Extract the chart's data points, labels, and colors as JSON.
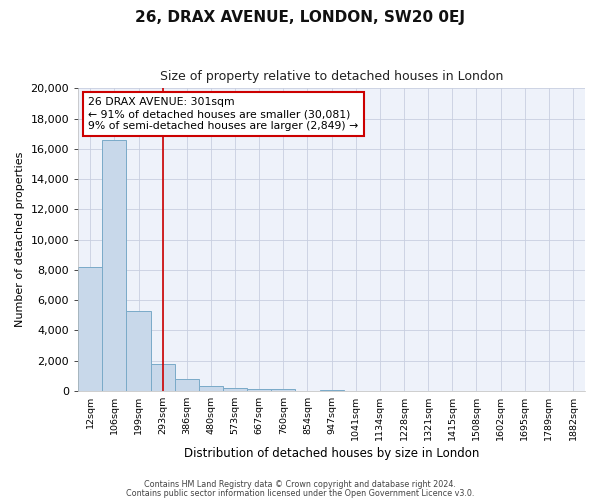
{
  "title": "26, DRAX AVENUE, LONDON, SW20 0EJ",
  "subtitle": "Size of property relative to detached houses in London",
  "xlabel": "Distribution of detached houses by size in London",
  "ylabel": "Number of detached properties",
  "bar_color": "#c8d8ea",
  "bar_edge_color": "#7aaac8",
  "bin_labels": [
    "12sqm",
    "106sqm",
    "199sqm",
    "293sqm",
    "386sqm",
    "480sqm",
    "573sqm",
    "667sqm",
    "760sqm",
    "854sqm",
    "947sqm",
    "1041sqm",
    "1134sqm",
    "1228sqm",
    "1321sqm",
    "1415sqm",
    "1508sqm",
    "1602sqm",
    "1695sqm",
    "1789sqm",
    "1882sqm"
  ],
  "bar_values": [
    8200,
    16600,
    5300,
    1800,
    780,
    290,
    210,
    150,
    90,
    0,
    80,
    0,
    0,
    0,
    0,
    0,
    0,
    0,
    0,
    0,
    0
  ],
  "ylim": [
    0,
    20000
  ],
  "yticks": [
    0,
    2000,
    4000,
    6000,
    8000,
    10000,
    12000,
    14000,
    16000,
    18000,
    20000
  ],
  "property_line_x": 3.0,
  "property_line_color": "#cc0000",
  "annotation_line1": "26 DRAX AVENUE: 301sqm",
  "annotation_line2": "← 91% of detached houses are smaller (30,081)",
  "annotation_line3": "9% of semi-detached houses are larger (2,849) →",
  "annotation_box_color": "#ffffff",
  "annotation_box_edge_color": "#cc0000",
  "footnote1": "Contains HM Land Registry data © Crown copyright and database right 2024.",
  "footnote2": "Contains public sector information licensed under the Open Government Licence v3.0.",
  "bg_color": "#ffffff",
  "plot_bg_color": "#eef2fa",
  "grid_color": "#c8cfe0",
  "title_fontsize": 11,
  "subtitle_fontsize": 9
}
